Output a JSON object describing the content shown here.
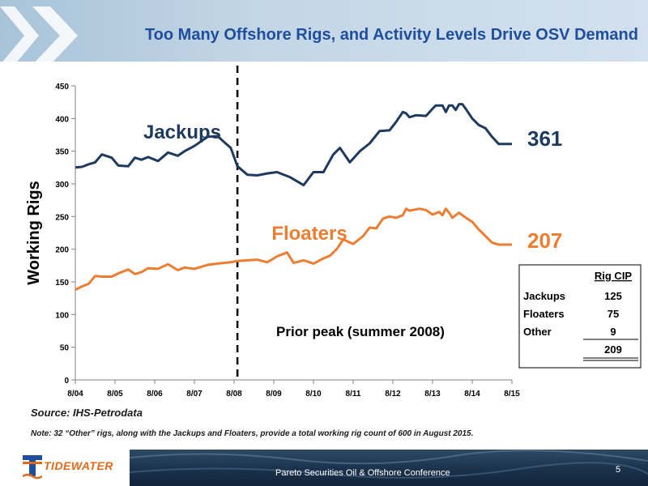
{
  "slide": {
    "title": "Too Many Offshore Rigs, and Activity Levels Drive OSV Demand",
    "source": "Source: IHS-Petrodata",
    "note": "Note: 32 “Other” rigs, along with the Jackups and Floaters, provide a total working rig count of 600 in August 2015.",
    "logo_text": "TIDEWATER",
    "conference": "Pareto Securities Oil & Offshore Conference",
    "page_number": "5"
  },
  "colors": {
    "jackups": "#1f3a5f",
    "floaters": "#ed7d31",
    "title": "#1f4e9c"
  },
  "chart_data": {
    "type": "line",
    "ylabel": "Working Rigs",
    "xlabel": "",
    "ylim": [
      0,
      450
    ],
    "yticks": [
      0,
      50,
      100,
      150,
      200,
      250,
      300,
      350,
      400,
      450
    ],
    "xlim": [
      2004.583,
      2015.583
    ],
    "xticks": [
      "8/04",
      "8/05",
      "8/06",
      "8/07",
      "8/08",
      "8/09",
      "8/10",
      "8/11",
      "8/12",
      "8/13",
      "8/14",
      "8/15"
    ],
    "grid": false,
    "annotation": {
      "label": "Prior peak (summer 2008)",
      "x": 2008.667
    },
    "series": [
      {
        "name": "Jackups",
        "end_label": "361",
        "x": [
          2004.583,
          2004.75,
          2004.917,
          2005.083,
          2005.25,
          2005.5,
          2005.667,
          2005.917,
          2006.083,
          2006.25,
          2006.417,
          2006.667,
          2006.917,
          2007.167,
          2007.333,
          2007.583,
          2007.917,
          2008.167,
          2008.5,
          2008.667,
          2008.917,
          2009.167,
          2009.417,
          2009.667,
          2010.0,
          2010.333,
          2010.583,
          2010.833,
          2011.083,
          2011.25,
          2011.5,
          2011.75,
          2012.0,
          2012.25,
          2012.5,
          2012.667,
          2012.833,
          2012.917,
          2013.0,
          2013.167,
          2013.417,
          2013.583,
          2013.667,
          2013.833,
          2013.917,
          2014.0,
          2014.083,
          2014.167,
          2014.25,
          2014.333,
          2014.417,
          2014.583,
          2014.75,
          2014.917,
          2015.083,
          2015.25,
          2015.333,
          2015.417,
          2015.583
        ],
        "values": [
          325,
          326,
          330,
          333,
          345,
          340,
          328,
          327,
          340,
          337,
          341,
          335,
          348,
          343,
          350,
          358,
          372,
          373,
          355,
          327,
          314,
          313,
          316,
          318,
          310,
          298,
          318,
          318,
          345,
          355,
          333,
          350,
          362,
          381,
          382,
          395,
          410,
          408,
          402,
          405,
          404,
          415,
          420,
          420,
          410,
          420,
          420,
          413,
          422,
          422,
          415,
          400,
          390,
          385,
          372,
          361,
          361,
          361,
          361
        ]
      },
      {
        "name": "Floaters",
        "end_label": "207",
        "x": [
          2004.583,
          2004.75,
          2004.917,
          2005.083,
          2005.25,
          2005.5,
          2005.667,
          2005.917,
          2006.083,
          2006.25,
          2006.417,
          2006.667,
          2006.917,
          2007.167,
          2007.333,
          2007.583,
          2007.917,
          2008.167,
          2008.5,
          2008.667,
          2008.917,
          2009.167,
          2009.417,
          2009.667,
          2009.917,
          2010.083,
          2010.333,
          2010.583,
          2010.833,
          2011.0,
          2011.167,
          2011.333,
          2011.583,
          2011.833,
          2012.0,
          2012.167,
          2012.333,
          2012.5,
          2012.667,
          2012.833,
          2012.917,
          2013.0,
          2013.083,
          2013.25,
          2013.417,
          2013.583,
          2013.75,
          2013.833,
          2013.917,
          2014.0,
          2014.083,
          2014.25,
          2014.333,
          2014.5,
          2014.583,
          2014.75,
          2014.917,
          2015.083,
          2015.25,
          2015.417,
          2015.583
        ],
        "values": [
          138,
          143,
          147,
          159,
          158,
          158,
          163,
          169,
          162,
          165,
          171,
          170,
          177,
          168,
          172,
          170,
          176,
          178,
          180,
          182,
          183,
          184,
          180,
          189,
          195,
          179,
          183,
          178,
          186,
          190,
          200,
          215,
          208,
          220,
          233,
          232,
          247,
          250,
          248,
          252,
          262,
          259,
          260,
          262,
          260,
          253,
          257,
          252,
          262,
          256,
          248,
          256,
          252,
          245,
          242,
          230,
          220,
          210,
          207,
          207,
          207
        ]
      }
    ],
    "rig_cip_table": {
      "header": "Rig CIP",
      "rows": [
        {
          "label": "Jackups",
          "value": "125"
        },
        {
          "label": "Floaters",
          "value": "75"
        },
        {
          "label": "Other",
          "value": "9"
        }
      ],
      "total": "209"
    }
  }
}
